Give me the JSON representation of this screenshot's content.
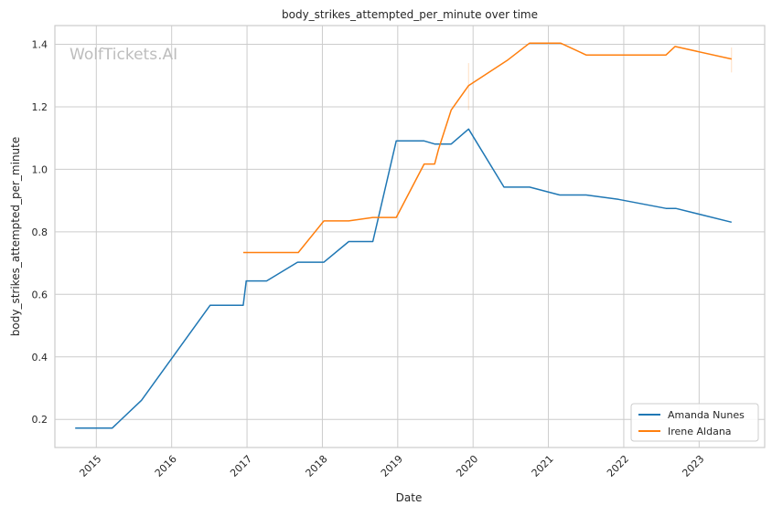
{
  "chart_data": {
    "type": "line",
    "title": "body_strikes_attempted_per_minute over time",
    "xlabel": "Date",
    "ylabel": "body_strikes_attempted_per_minute",
    "watermark": "WolfTickets.AI",
    "xlim": [
      2014.45,
      2023.87
    ],
    "ylim": [
      0.11,
      1.46
    ],
    "x_ticks": [
      2015,
      2016,
      2017,
      2018,
      2019,
      2020,
      2021,
      2022,
      2023
    ],
    "x_tick_labels": [
      "2015",
      "2016",
      "2017",
      "2018",
      "2019",
      "2020",
      "2021",
      "2022",
      "2023"
    ],
    "y_ticks": [
      0.2,
      0.4,
      0.6,
      0.8,
      1.0,
      1.2,
      1.4
    ],
    "y_tick_labels": [
      "0.2",
      "0.4",
      "0.6",
      "0.8",
      "1.0",
      "1.2",
      "1.4"
    ],
    "grid": true,
    "legend_position": "bottom-right",
    "series": [
      {
        "name": "Amanda Nunes",
        "color": "#1f77b4",
        "x": [
          2014.72,
          2015.21,
          2015.6,
          2016.51,
          2016.95,
          2016.99,
          2017.26,
          2017.67,
          2018.02,
          2018.35,
          2018.67,
          2018.98,
          2019.35,
          2019.49,
          2019.71,
          2019.94,
          2020.41,
          2020.75,
          2021.15,
          2021.5,
          2021.93,
          2022.56,
          2022.69,
          2023.43
        ],
        "y": [
          0.172,
          0.172,
          0.261,
          0.565,
          0.565,
          0.643,
          0.643,
          0.703,
          0.703,
          0.769,
          0.769,
          1.091,
          1.091,
          1.081,
          1.081,
          1.129,
          0.943,
          0.943,
          0.918,
          0.918,
          0.904,
          0.875,
          0.875,
          0.831
        ]
      },
      {
        "name": "Irene Aldana",
        "color": "#ff7f0e",
        "x": [
          2016.95,
          2017.68,
          2018.02,
          2018.35,
          2018.67,
          2018.98,
          2019.35,
          2019.49,
          2019.54,
          2019.71,
          2019.94,
          2020.45,
          2020.75,
          2021.16,
          2021.5,
          2022.56,
          2022.68,
          2023.43
        ],
        "y": [
          0.734,
          0.734,
          0.835,
          0.835,
          0.846,
          0.846,
          1.017,
          1.017,
          1.063,
          1.19,
          1.268,
          1.348,
          1.404,
          1.404,
          1.366,
          1.366,
          1.393,
          1.353
        ],
        "error_bars": [
          {
            "x": 2019.94,
            "low": 1.19,
            "high": 1.34
          },
          {
            "x": 2023.43,
            "low": 1.31,
            "high": 1.39
          }
        ]
      }
    ]
  }
}
